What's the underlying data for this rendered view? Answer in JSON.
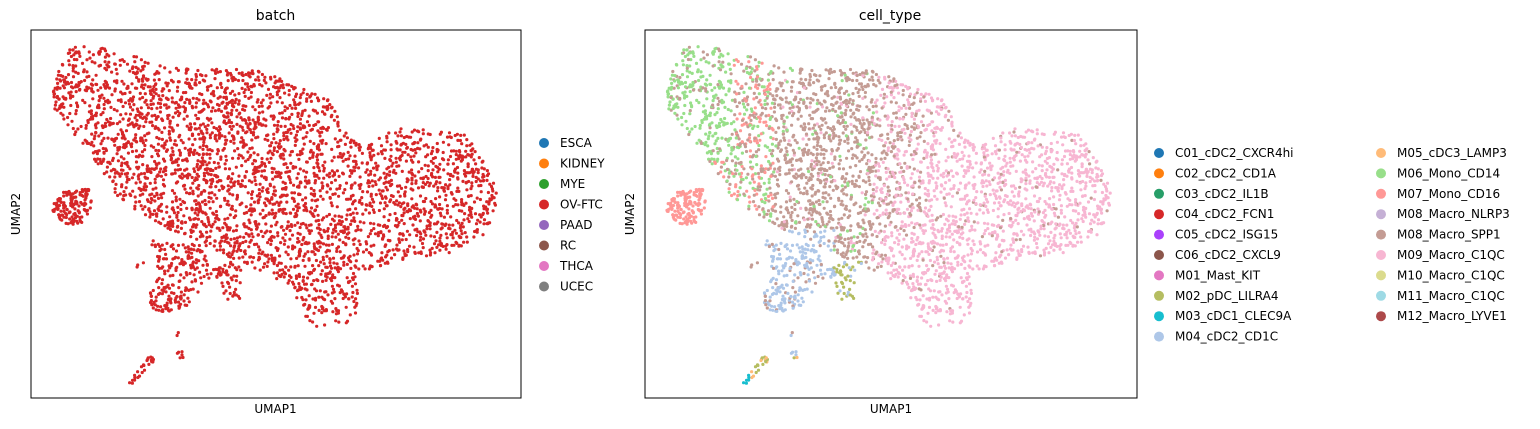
{
  "chart_data": [
    {
      "type": "scatter",
      "title": "batch",
      "xlabel": "UMAP1",
      "ylabel": "UMAP2",
      "grid": false,
      "ticks_visible": false,
      "legend_position": "right",
      "legend": [
        {
          "label": "ESCA",
          "color": "#1f77b4"
        },
        {
          "label": "KIDNEY",
          "color": "#ff7f0e"
        },
        {
          "label": "MYE",
          "color": "#2ca02c"
        },
        {
          "label": "OV-FTC",
          "color": "#d62728"
        },
        {
          "label": "PAAD",
          "color": "#9467bd"
        },
        {
          "label": "RC",
          "color": "#8c564b"
        },
        {
          "label": "THCA",
          "color": "#e377c2"
        },
        {
          "label": "UCEC",
          "color": "#7f7f7f"
        }
      ],
      "point_color": "#d62728",
      "approx_point_count": 4000
    },
    {
      "type": "scatter",
      "title": "cell_type",
      "xlabel": "UMAP1",
      "ylabel": "UMAP2",
      "grid": false,
      "ticks_visible": false,
      "legend_position": "right",
      "legend_columns": 2,
      "legend": [
        {
          "label": "C01_cDC2_CXCR4hi",
          "color": "#1f77b4"
        },
        {
          "label": "C02_cDC2_CD1A",
          "color": "#ff7f0e"
        },
        {
          "label": "C03_cDC2_IL1B",
          "color": "#279e68"
        },
        {
          "label": "C04_cDC2_FCN1",
          "color": "#d62728"
        },
        {
          "label": "C05_cDC2_ISG15",
          "color": "#aa40fc"
        },
        {
          "label": "C06_cDC2_CXCL9",
          "color": "#8c564b"
        },
        {
          "label": "M01_Mast_KIT",
          "color": "#e377c2"
        },
        {
          "label": "M02_pDC_LILRA4",
          "color": "#b5bd61"
        },
        {
          "label": "M03_cDC1_CLEC9A",
          "color": "#17becf"
        },
        {
          "label": "M04_cDC2_CD1C",
          "color": "#aec7e8"
        },
        {
          "label": "M05_cDC3_LAMP3",
          "color": "#ffbb78"
        },
        {
          "label": "M06_Mono_CD14",
          "color": "#98df8a"
        },
        {
          "label": "M07_Mono_CD16",
          "color": "#ff9896"
        },
        {
          "label": "M08_Macro_NLRP3",
          "color": "#c5b0d5"
        },
        {
          "label": "M08_Macro_SPP1",
          "color": "#c49c94"
        },
        {
          "label": "M09_Macro_C1QC",
          "color": "#f7b6d2"
        },
        {
          "label": "M10_Macro_C1QC",
          "color": "#dbdb8d"
        },
        {
          "label": "M11_Macro_C1QC",
          "color": "#9edae5"
        },
        {
          "label": "M12_Macro_LYVE1",
          "color": "#ad494a"
        }
      ],
      "approx_point_count": 4000
    }
  ]
}
